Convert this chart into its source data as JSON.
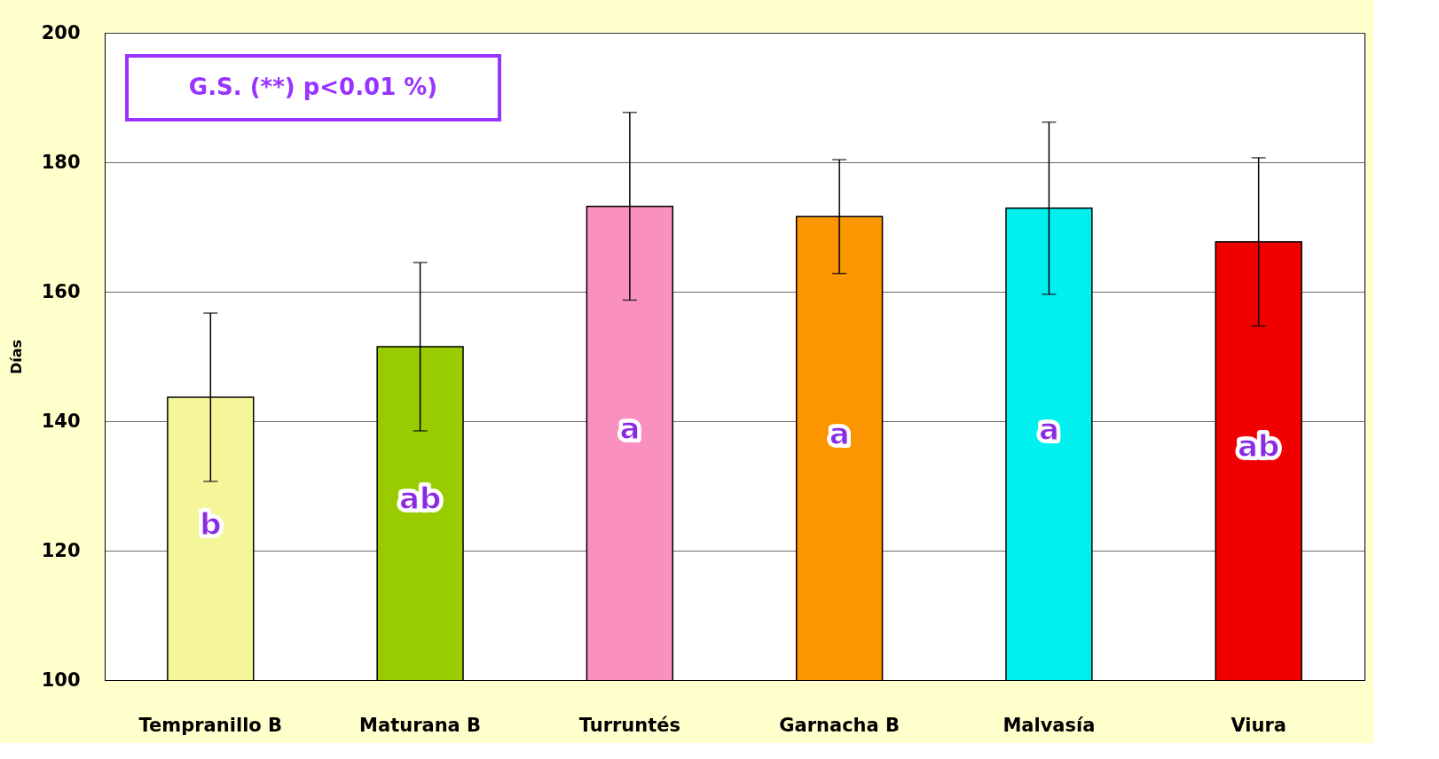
{
  "chart_data": {
    "type": "bar",
    "ylabel": "Días",
    "categories": [
      "Tempranillo B",
      "Maturana B",
      "Turruntés",
      "Garnacha B",
      "Malvasía",
      "Viura"
    ],
    "values": [
      143.7,
      151.5,
      173.2,
      171.6,
      172.9,
      167.7
    ],
    "colors": [
      "#f5f59a",
      "#99cc00",
      "#f990c0",
      "#fb9500",
      "#00f0f0",
      "#f00000"
    ],
    "errors": [
      13,
      13,
      14.5,
      8.8,
      13.3,
      13
    ],
    "ylim": [
      100,
      200
    ],
    "yticks": [
      100,
      120,
      140,
      160,
      180,
      200
    ],
    "grid": "y",
    "annotations": [
      "G.S. (**) p<0.01 %)",
      "b",
      "ab",
      "a",
      "a",
      "a",
      "ab"
    ]
  }
}
